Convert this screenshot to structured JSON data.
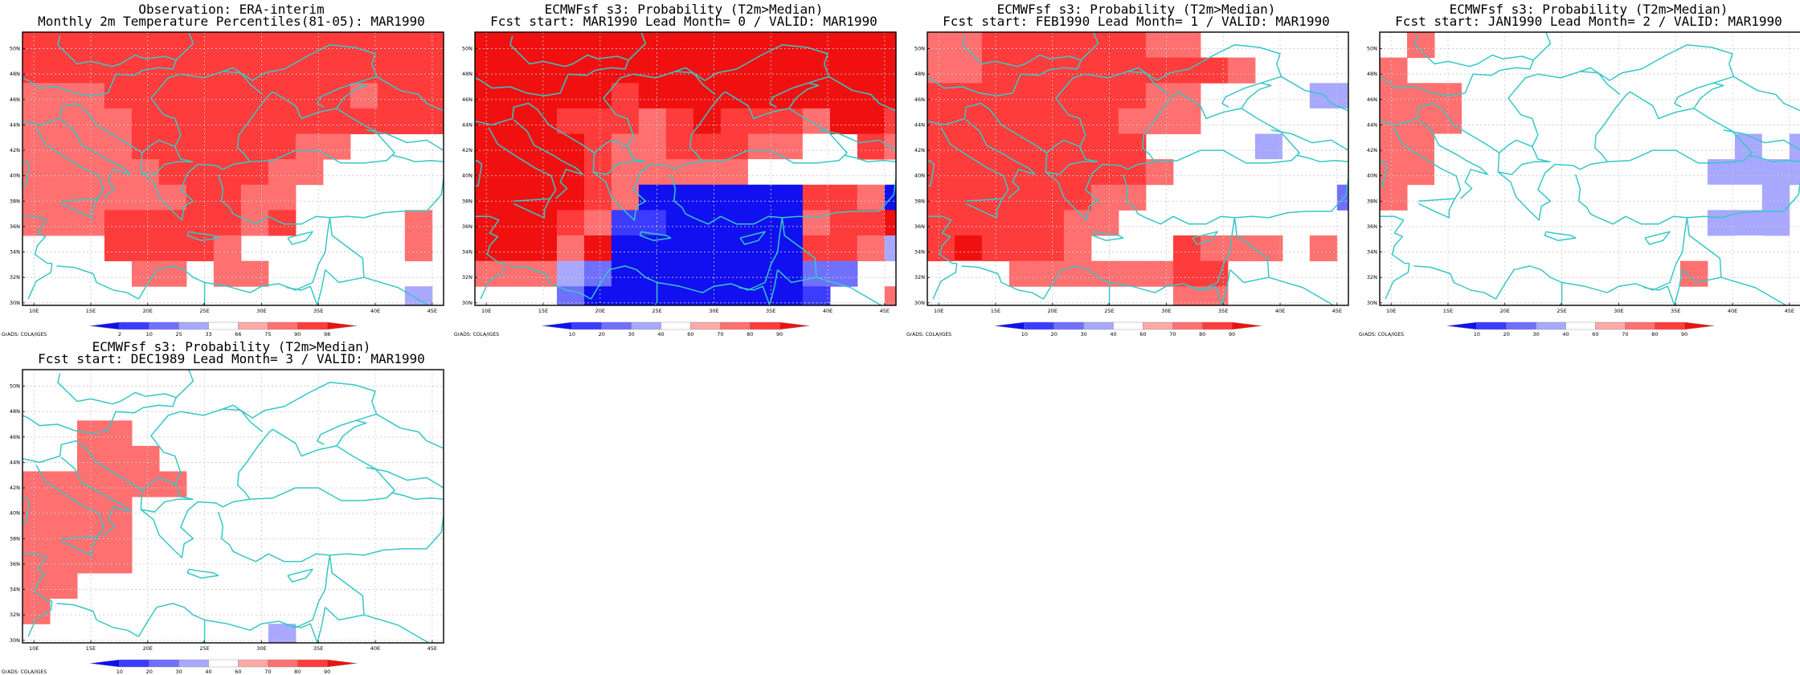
{
  "colors": {
    "coast": "#36c7c7",
    "grid": "#c8c8c8",
    "frame": "#000000"
  },
  "map": {
    "lon_labels": [
      "10E",
      "15E",
      "20E",
      "25E",
      "30E",
      "35E",
      "40E",
      "45E"
    ],
    "lat_labels": [
      "30N",
      "32N",
      "34N",
      "36N",
      "38N",
      "40N",
      "42N",
      "44N",
      "46N",
      "48N",
      "50N"
    ],
    "lon_values": [
      10,
      15,
      20,
      25,
      30,
      35,
      40,
      45
    ],
    "lat_values": [
      30,
      32,
      34,
      36,
      38,
      40,
      42,
      44,
      46,
      48,
      50
    ]
  },
  "scale_obs": {
    "labels": [
      "2",
      "10",
      "25",
      "33",
      "66",
      "75",
      "90",
      "98"
    ],
    "colors": [
      "#1010f0",
      "#3c3cff",
      "#7070ff",
      "#a8a8ff",
      "#ffffff",
      "#ffa8a8",
      "#ff7070",
      "#ff3c3c",
      "#f01010"
    ]
  },
  "scale_prob": {
    "labels": [
      "10",
      "20",
      "30",
      "40",
      "60",
      "70",
      "80",
      "90"
    ],
    "colors": [
      "#1010f0",
      "#3c3cff",
      "#7070ff",
      "#a8a8ff",
      "#ffffff",
      "#ffa8a8",
      "#ff7070",
      "#ff3c3c",
      "#f01010"
    ]
  },
  "credit": "GrADS: COLA/IGES",
  "panels": [
    {
      "title1": "Observation: ERA-interim",
      "title2": "Monthly 2m Temperature Percentiles(81-05): MAR1990",
      "scale": "obs",
      "rows": [
        "7777777777777777",
        "7777777777777777",
        "6667777777776777",
        "6666777777777777",
        "6666777777665555",
        "6666677776655555",
        "6666667766555555",
        "6667777767555565",
        "5557777655555565",
        "5555665665555555",
        "5555555555555535"
      ]
    },
    {
      "title1": "ECMWFsf s3: Probability (T2m>Median)",
      "title2": "Fcst start: MAR1990  Lead Month= 0 / VALID: MAR1990",
      "scale": "prob",
      "rows": [
        "8888888888888888",
        "8888888888888888",
        "8888878888888888",
        "8887776787776887",
        "8888766777664576",
        "8888766666444555",
        "8888760000007760",
        "8887611000006778",
        "8886800000007763",
        "6663200000002255",
        "5552000000001556"
      ]
    },
    {
      "title1": "ECMWFsf s3: Probability (T2m>Median)",
      "title2": "Fcst start: FEB1990  Lead Month= 1 / VALID: MAR1990",
      "scale": "prob",
      "rows": [
        "6677777766555555",
        "6677777777765555",
        "7777777766555533",
        "7777777666555444",
        "7777777755543444",
        "7777777765444445",
        "7777776655555552",
        "7777766555555555",
        "7877765557666565",
        "5456666667755555",
        "5555555556655544"
      ]
    },
    {
      "title1": "ECMWFsf s3: Probability (T2m>Median)",
      "title2": "Fcst start: JAN1990  Lead Month= 2 / VALID: MAR1990",
      "scale": "prob",
      "rows": [
        "5655555555555555",
        "6555555555555554",
        "6664455555554445",
        "6664445555554455",
        "6644455555444343",
        "6644444444443333",
        "6544444445444435",
        "5544444444443335",
        "4544444445555454",
        "5544444455565545",
        "5544444555555555"
      ]
    },
    {
      "title1": "ECMWFsf s3: Probability (T2m>Median)",
      "title2": "Fcst start: DEC1989  Lead Month= 3 / VALID: MAR1990",
      "scale": "prob",
      "rows": [
        "5555555555555555",
        "5555554445555444",
        "5566555444555555",
        "5566655444555555",
        "6666665555555555",
        "6666555555555555",
        "6666555555555555",
        "6666555445555555",
        "6655554555555555",
        "6555555455555555",
        "5555554443555555"
      ]
    }
  ]
}
